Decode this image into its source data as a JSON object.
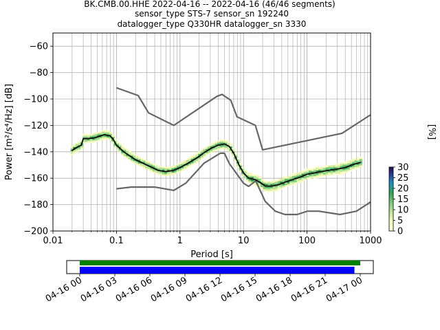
{
  "title_lines": [
    "BK.CMB.00.HHE   2022-04-16 -- 2022-04-16  (46/46 segments)",
    "sensor_type STS-7 sensor_sn 192240",
    "datalogger_type Q330HR datalogger_sn 3330"
  ],
  "colors": {
    "grid": "#b0b0b0",
    "noise_model": "#666666",
    "mode_line": "#000000",
    "bar_green": "#008000",
    "bar_blue": "#0000ff"
  },
  "chart_data": [
    {
      "type": "heatmap",
      "xlabel": "Period [s]",
      "ylabel": "Power [m²/s⁴/Hz] [dB]",
      "xscale": "log",
      "xlim": [
        0.01,
        1000
      ],
      "ylim": [
        -200,
        -50
      ],
      "xticks": [
        0.01,
        0.1,
        1,
        10,
        100,
        1000
      ],
      "xtick_labels": [
        "0.01",
        "0.1",
        "1",
        "10",
        "100",
        "1000"
      ],
      "yticks": [
        -200,
        -180,
        -160,
        -140,
        -120,
        -100,
        -80,
        -60
      ],
      "ytick_labels": [
        "−200",
        "−180",
        "−160",
        "−140",
        "−120",
        "−100",
        "−80",
        "−60"
      ],
      "grid": true,
      "colorbar": {
        "label": "[%]",
        "range": [
          0,
          30
        ],
        "ticks": [
          0,
          5,
          10,
          15,
          20,
          25,
          30
        ],
        "tick_labels": [
          "0",
          "5",
          "10",
          "15",
          "20",
          "25",
          "30"
        ]
      },
      "noise_model_high": {
        "x": [
          0.1,
          0.22,
          0.32,
          0.8,
          3.8,
          4.6,
          6.3,
          7.9,
          15.4,
          20,
          354.8,
          1000
        ],
        "y": [
          -91.5,
          -97.4,
          -110.5,
          -120,
          -98,
          -96.5,
          -101,
          -113.5,
          -120,
          -138.5,
          -126,
          -112
        ]
      },
      "noise_model_low": {
        "x": [
          0.1,
          0.17,
          0.4,
          0.8,
          1.24,
          2.4,
          4.3,
          5,
          6,
          10,
          12,
          15.6,
          21.9,
          31.6,
          45,
          70,
          101,
          154,
          328,
          600,
          1000
        ],
        "y": [
          -168,
          -166.7,
          -166.7,
          -169.2,
          -163.7,
          -148.6,
          -141.1,
          -141.1,
          -149,
          -163.8,
          -166.2,
          -162.1,
          -177.5,
          -185,
          -187.5,
          -187.5,
          -185,
          -185,
          -187.5,
          -185,
          -178
        ]
      },
      "mode_line": {
        "x": [
          0.02,
          0.025,
          0.028,
          0.03,
          0.035,
          0.045,
          0.055,
          0.065,
          0.08,
          0.09,
          0.1,
          0.13,
          0.2,
          0.3,
          0.45,
          0.6,
          0.8,
          1.0,
          1.3,
          1.8,
          2.5,
          3.2,
          4.0,
          5.0,
          6.0,
          7.0,
          8.5,
          10,
          12,
          15,
          18,
          22,
          28,
          35,
          45,
          60,
          80,
          100,
          130,
          170,
          220,
          300,
          400,
          500,
          700
        ],
        "y": [
          -139,
          -136,
          -135,
          -130,
          -130,
          -129.5,
          -128,
          -127,
          -128,
          -131,
          -135,
          -140,
          -146,
          -150,
          -154,
          -155,
          -154,
          -152,
          -149,
          -145,
          -140,
          -137,
          -135,
          -134,
          -136,
          -141,
          -150,
          -156,
          -160,
          -161,
          -163,
          -166,
          -166,
          -165,
          -163,
          -161,
          -159,
          -157,
          -156,
          -155,
          -154,
          -153,
          -152,
          -150,
          -148
        ]
      },
      "availability": {
        "time_range": [
          "04-16 00",
          "04-17 00"
        ],
        "tick_labels": [
          "04-16 00",
          "04-16 03",
          "04-16 06",
          "04-16 09",
          "04-16 12",
          "04-16 15",
          "04-16 18",
          "04-16 21",
          "04-17 00"
        ],
        "data_span_hours": [
          0,
          24
        ],
        "psd_span_hours": [
          0,
          23.5
        ]
      }
    }
  ]
}
